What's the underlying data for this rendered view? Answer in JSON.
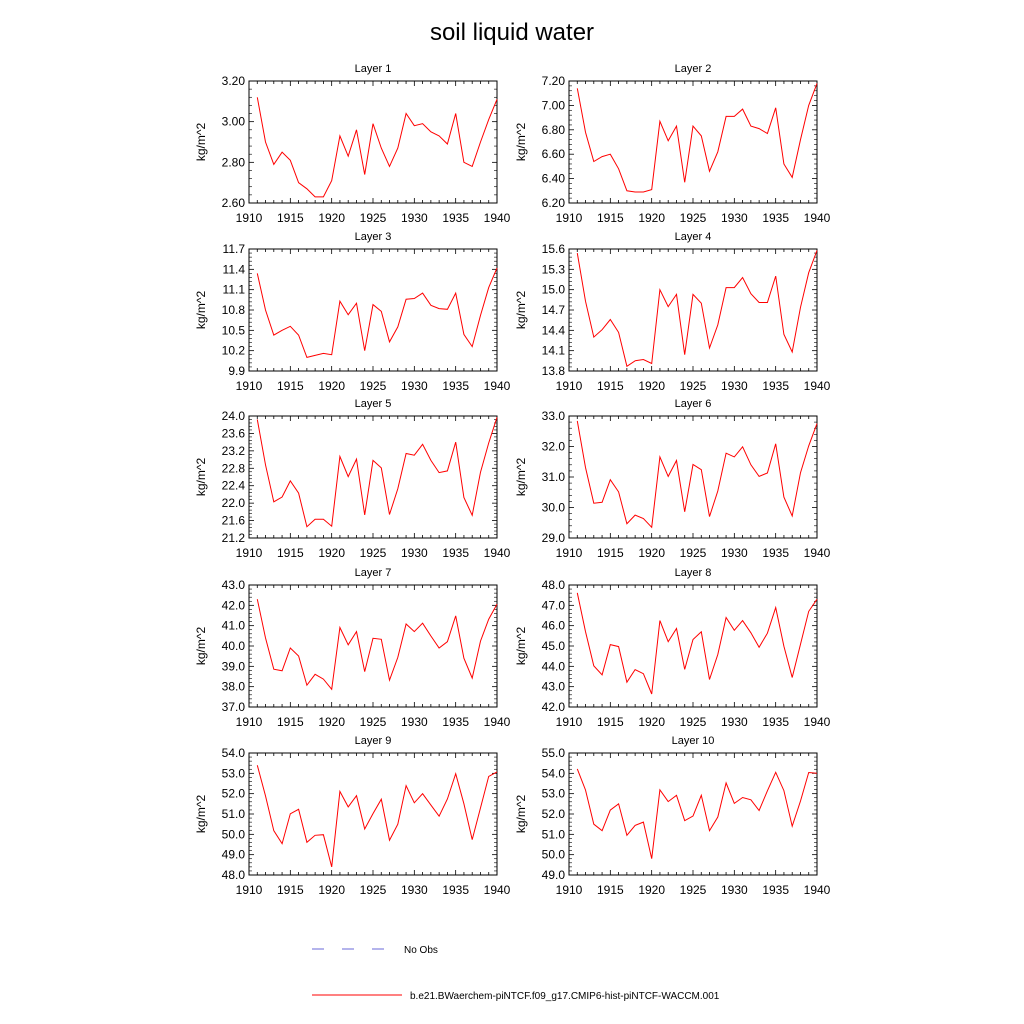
{
  "title": "soil liquid water",
  "legend": {
    "obs_label": "No Obs",
    "model_label": "b.e21.BWaerchem-piNTCF.f09_g17.CMIP6-hist-piNTCF-WACCM.001",
    "model_color": "#ff0000",
    "obs_color": "#6a6ad8"
  },
  "chart_data": [
    {
      "type": "line",
      "title": "Layer 1",
      "ylabel": "kg/m^2",
      "xlim": [
        1910,
        1940
      ],
      "ylim": [
        2.6,
        3.2
      ],
      "yticks": [
        "2.60",
        "2.80",
        "3.00",
        "3.20"
      ],
      "xticks": [
        "1910",
        "1915",
        "1920",
        "1925",
        "1930",
        "1935",
        "1940"
      ],
      "x": [
        1911,
        1912,
        1913,
        1914,
        1915,
        1916,
        1917,
        1918,
        1919,
        1920,
        1921,
        1922,
        1923,
        1924,
        1925,
        1926,
        1927,
        1928,
        1929,
        1930,
        1931,
        1932,
        1933,
        1934,
        1935,
        1936,
        1937,
        1938,
        1939,
        1940
      ],
      "series": [
        {
          "values": [
            3.12,
            2.9,
            2.79,
            2.85,
            2.81,
            2.7,
            2.67,
            2.63,
            2.63,
            2.71,
            2.93,
            2.83,
            2.96,
            2.74,
            2.99,
            2.87,
            2.78,
            2.87,
            3.04,
            2.98,
            2.99,
            2.95,
            2.93,
            2.89,
            3.04,
            2.8,
            2.78,
            2.9,
            3.01,
            3.11
          ]
        }
      ]
    },
    {
      "type": "line",
      "title": "Layer 2",
      "ylabel": "kg/m^2",
      "xlim": [
        1910,
        1940
      ],
      "ylim": [
        6.2,
        7.2
      ],
      "yticks": [
        "6.20",
        "6.40",
        "6.60",
        "6.80",
        "7.00",
        "7.20"
      ],
      "xticks": [
        "1910",
        "1915",
        "1920",
        "1925",
        "1930",
        "1935",
        "1940"
      ],
      "x": [
        1911,
        1912,
        1913,
        1914,
        1915,
        1916,
        1917,
        1918,
        1919,
        1920,
        1921,
        1922,
        1923,
        1924,
        1925,
        1926,
        1927,
        1928,
        1929,
        1930,
        1931,
        1932,
        1933,
        1934,
        1935,
        1936,
        1937,
        1938,
        1939,
        1940
      ],
      "series": [
        {
          "values": [
            7.14,
            6.78,
            6.54,
            6.58,
            6.6,
            6.48,
            6.3,
            6.29,
            6.29,
            6.31,
            6.87,
            6.71,
            6.83,
            6.37,
            6.83,
            6.75,
            6.46,
            6.62,
            6.91,
            6.91,
            6.97,
            6.83,
            6.81,
            6.77,
            6.98,
            6.52,
            6.41,
            6.72,
            7.0,
            7.18
          ]
        }
      ]
    },
    {
      "type": "line",
      "title": "Layer 3",
      "ylabel": "kg/m^2",
      "xlim": [
        1910,
        1940
      ],
      "ylim": [
        9.9,
        11.7
      ],
      "yticks": [
        "9.9",
        "10.2",
        "10.5",
        "10.8",
        "11.1",
        "11.4",
        "11.7"
      ],
      "xticks": [
        "1910",
        "1915",
        "1920",
        "1925",
        "1930",
        "1935",
        "1940"
      ],
      "x": [
        1911,
        1912,
        1913,
        1914,
        1915,
        1916,
        1917,
        1918,
        1919,
        1920,
        1921,
        1922,
        1923,
        1924,
        1925,
        1926,
        1927,
        1928,
        1929,
        1930,
        1931,
        1932,
        1933,
        1934,
        1935,
        1936,
        1937,
        1938,
        1939,
        1940
      ],
      "series": [
        {
          "values": [
            11.34,
            10.8,
            10.43,
            10.5,
            10.56,
            10.43,
            10.1,
            10.13,
            10.16,
            10.14,
            10.93,
            10.73,
            10.9,
            10.2,
            10.88,
            10.78,
            10.33,
            10.55,
            10.96,
            10.97,
            11.05,
            10.87,
            10.82,
            10.81,
            11.05,
            10.44,
            10.26,
            10.72,
            11.13,
            11.42
          ]
        }
      ]
    },
    {
      "type": "line",
      "title": "Layer 4",
      "ylabel": "kg/m^2",
      "xlim": [
        1910,
        1940
      ],
      "ylim": [
        13.8,
        15.6
      ],
      "yticks": [
        "13.8",
        "14.1",
        "14.4",
        "14.7",
        "15.0",
        "15.3",
        "15.6"
      ],
      "xticks": [
        "1910",
        "1915",
        "1920",
        "1925",
        "1930",
        "1935",
        "1940"
      ],
      "x": [
        1911,
        1912,
        1913,
        1914,
        1915,
        1916,
        1917,
        1918,
        1919,
        1920,
        1921,
        1922,
        1923,
        1924,
        1925,
        1926,
        1927,
        1928,
        1929,
        1930,
        1931,
        1932,
        1933,
        1934,
        1935,
        1936,
        1937,
        1938,
        1939,
        1940
      ],
      "series": [
        {
          "values": [
            15.54,
            14.83,
            14.3,
            14.41,
            14.56,
            14.37,
            13.87,
            13.95,
            13.97,
            13.91,
            15.0,
            14.75,
            14.93,
            14.04,
            14.93,
            14.8,
            14.14,
            14.48,
            15.03,
            15.03,
            15.18,
            14.94,
            14.81,
            14.81,
            15.2,
            14.34,
            14.08,
            14.74,
            15.25,
            15.58
          ]
        }
      ]
    },
    {
      "type": "line",
      "title": "Layer 5",
      "ylabel": "kg/m^2",
      "xlim": [
        1910,
        1940
      ],
      "ylim": [
        21.2,
        24.0
      ],
      "yticks": [
        "21.2",
        "21.6",
        "22.0",
        "22.4",
        "22.8",
        "23.2",
        "23.6",
        "24.0"
      ],
      "xticks": [
        "1910",
        "1915",
        "1920",
        "1925",
        "1930",
        "1935",
        "1940"
      ],
      "x": [
        1911,
        1912,
        1913,
        1914,
        1915,
        1916,
        1917,
        1918,
        1919,
        1920,
        1921,
        1922,
        1923,
        1924,
        1925,
        1926,
        1927,
        1928,
        1929,
        1930,
        1931,
        1932,
        1933,
        1934,
        1935,
        1936,
        1937,
        1938,
        1939,
        1940
      ],
      "series": [
        {
          "values": [
            23.92,
            22.88,
            22.03,
            22.14,
            22.51,
            22.23,
            21.46,
            21.63,
            21.63,
            21.47,
            23.07,
            22.61,
            23.01,
            21.73,
            22.98,
            22.81,
            21.74,
            22.33,
            23.14,
            23.1,
            23.35,
            22.98,
            22.7,
            22.74,
            23.4,
            22.13,
            21.72,
            22.71,
            23.38,
            23.97
          ]
        }
      ]
    },
    {
      "type": "line",
      "title": "Layer 6",
      "ylabel": "kg/m^2",
      "xlim": [
        1910,
        1940
      ],
      "ylim": [
        29.0,
        33.0
      ],
      "yticks": [
        "29.0",
        "30.0",
        "31.0",
        "32.0",
        "33.0"
      ],
      "xticks": [
        "1910",
        "1915",
        "1920",
        "1925",
        "1930",
        "1935",
        "1940"
      ],
      "x": [
        1911,
        1912,
        1913,
        1914,
        1915,
        1916,
        1917,
        1918,
        1919,
        1920,
        1921,
        1922,
        1923,
        1924,
        1925,
        1926,
        1927,
        1928,
        1929,
        1930,
        1931,
        1932,
        1933,
        1934,
        1935,
        1936,
        1937,
        1938,
        1939,
        1940
      ],
      "series": [
        {
          "values": [
            32.84,
            31.31,
            30.14,
            30.17,
            30.91,
            30.51,
            29.47,
            29.75,
            29.64,
            29.35,
            31.66,
            31.02,
            31.54,
            29.86,
            31.41,
            31.24,
            29.7,
            30.54,
            31.78,
            31.66,
            31.99,
            31.4,
            31.02,
            31.13,
            32.09,
            30.34,
            29.72,
            31.14,
            32.02,
            32.75
          ]
        }
      ]
    },
    {
      "type": "line",
      "title": "Layer 7",
      "ylabel": "kg/m^2",
      "xlim": [
        1910,
        1940
      ],
      "ylim": [
        37.0,
        43.0
      ],
      "yticks": [
        "37.0",
        "38.0",
        "39.0",
        "40.0",
        "41.0",
        "42.0",
        "43.0"
      ],
      "xticks": [
        "1910",
        "1915",
        "1920",
        "1925",
        "1930",
        "1935",
        "1940"
      ],
      "x": [
        1911,
        1912,
        1913,
        1914,
        1915,
        1916,
        1917,
        1918,
        1919,
        1920,
        1921,
        1922,
        1923,
        1924,
        1925,
        1926,
        1927,
        1928,
        1929,
        1930,
        1931,
        1932,
        1933,
        1934,
        1935,
        1936,
        1937,
        1938,
        1939,
        1940
      ],
      "series": [
        {
          "values": [
            42.3,
            40.4,
            38.86,
            38.78,
            39.9,
            39.51,
            38.07,
            38.61,
            38.37,
            37.87,
            40.91,
            40.06,
            40.71,
            38.74,
            40.38,
            40.33,
            38.32,
            39.44,
            41.08,
            40.71,
            41.12,
            40.49,
            39.9,
            40.21,
            41.48,
            39.4,
            38.42,
            40.24,
            41.32,
            42.06
          ]
        }
      ]
    },
    {
      "type": "line",
      "title": "Layer 8",
      "ylabel": "kg/m^2",
      "xlim": [
        1910,
        1940
      ],
      "ylim": [
        42.0,
        48.0
      ],
      "yticks": [
        "42.0",
        "43.0",
        "44.0",
        "45.0",
        "46.0",
        "47.0",
        "48.0"
      ],
      "xticks": [
        "1910",
        "1915",
        "1920",
        "1925",
        "1930",
        "1935",
        "1940"
      ],
      "x": [
        1911,
        1912,
        1913,
        1914,
        1915,
        1916,
        1917,
        1918,
        1919,
        1920,
        1921,
        1922,
        1923,
        1924,
        1925,
        1926,
        1927,
        1928,
        1929,
        1930,
        1931,
        1932,
        1933,
        1934,
        1935,
        1936,
        1937,
        1938,
        1939,
        1940
      ],
      "series": [
        {
          "values": [
            47.61,
            45.71,
            44.02,
            43.58,
            45.07,
            44.97,
            43.22,
            43.84,
            43.64,
            42.64,
            46.25,
            45.21,
            45.86,
            43.85,
            45.32,
            45.7,
            43.35,
            44.58,
            46.4,
            45.77,
            46.25,
            45.65,
            44.94,
            45.63,
            46.89,
            44.99,
            43.45,
            45.09,
            46.7,
            47.3
          ]
        }
      ]
    },
    {
      "type": "line",
      "title": "Layer 9",
      "ylabel": "kg/m^2",
      "xlim": [
        1910,
        1940
      ],
      "ylim": [
        48.0,
        54.0
      ],
      "yticks": [
        "48.0",
        "49.0",
        "50.0",
        "51.0",
        "52.0",
        "53.0",
        "54.0"
      ],
      "xticks": [
        "1910",
        "1915",
        "1920",
        "1925",
        "1930",
        "1935",
        "1940"
      ],
      "x": [
        1911,
        1912,
        1913,
        1914,
        1915,
        1916,
        1917,
        1918,
        1919,
        1920,
        1921,
        1922,
        1923,
        1924,
        1925,
        1926,
        1927,
        1928,
        1929,
        1930,
        1931,
        1932,
        1933,
        1934,
        1935,
        1936,
        1937,
        1938,
        1939,
        1940
      ],
      "series": [
        {
          "values": [
            53.4,
            51.89,
            50.18,
            49.54,
            51.01,
            51.23,
            49.61,
            49.95,
            49.98,
            48.4,
            52.11,
            51.35,
            51.9,
            50.26,
            51.02,
            51.73,
            49.71,
            50.5,
            52.39,
            51.55,
            52.0,
            51.44,
            50.89,
            51.74,
            52.98,
            51.5,
            49.74,
            51.3,
            52.85,
            53.07
          ]
        }
      ]
    },
    {
      "type": "line",
      "title": "Layer 10",
      "ylabel": "kg/m^2",
      "xlim": [
        1910,
        1940
      ],
      "ylim": [
        49.0,
        55.0
      ],
      "yticks": [
        "49.0",
        "50.0",
        "51.0",
        "52.0",
        "53.0",
        "54.0",
        "55.0"
      ],
      "xticks": [
        "1910",
        "1915",
        "1920",
        "1925",
        "1930",
        "1935",
        "1940"
      ],
      "x": [
        1911,
        1912,
        1913,
        1914,
        1915,
        1916,
        1917,
        1918,
        1919,
        1920,
        1921,
        1922,
        1923,
        1924,
        1925,
        1926,
        1927,
        1928,
        1929,
        1930,
        1931,
        1932,
        1933,
        1934,
        1935,
        1936,
        1937,
        1938,
        1939,
        1940
      ],
      "series": [
        {
          "values": [
            54.22,
            53.18,
            51.5,
            51.18,
            52.19,
            52.5,
            50.95,
            51.44,
            51.6,
            49.8,
            53.19,
            52.61,
            52.92,
            51.67,
            51.9,
            52.92,
            51.18,
            51.85,
            53.53,
            52.52,
            52.81,
            52.7,
            52.17,
            53.14,
            54.05,
            53.15,
            51.4,
            52.64,
            54.04,
            54.0
          ]
        }
      ]
    }
  ]
}
